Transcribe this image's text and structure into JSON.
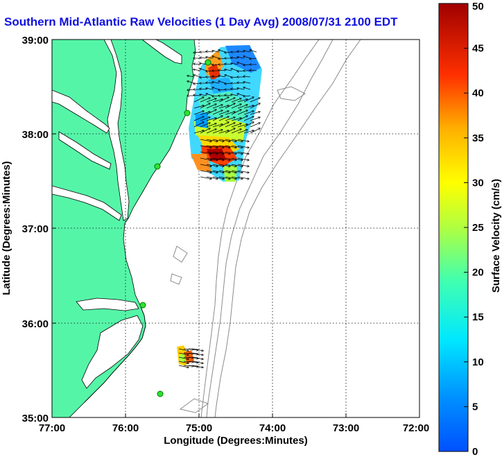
{
  "title": "Southern Mid-Atlantic Raw Velocities (1 Day Avg) 2008/07/31 2100 EDT",
  "xlabel": "Longitude (Degrees:Minutes)",
  "ylabel": "Latitude (Degrees:Minutes)",
  "colorbar_label": "Surface Velocity (cm/s)",
  "colors": {
    "land": "#55f5a8",
    "coast": "#000000",
    "bathymetry": "#8a8a8a",
    "title": "#1010e0"
  },
  "chart_data": {
    "type": "map",
    "x_ticks": [
      "77:00",
      "76:00",
      "75:00",
      "74:00",
      "73:00",
      "72:00"
    ],
    "y_ticks": [
      "39:00",
      "38:00",
      "37:00",
      "36:00",
      "35:00"
    ],
    "xlim": [
      -77,
      -72
    ],
    "ylim": [
      35,
      39
    ],
    "grid": true,
    "colorbar": {
      "min": 0,
      "max": 50,
      "ticks": [
        "0",
        "5",
        "10",
        "15",
        "20",
        "25",
        "30",
        "35",
        "40",
        "45",
        "50"
      ]
    }
  }
}
